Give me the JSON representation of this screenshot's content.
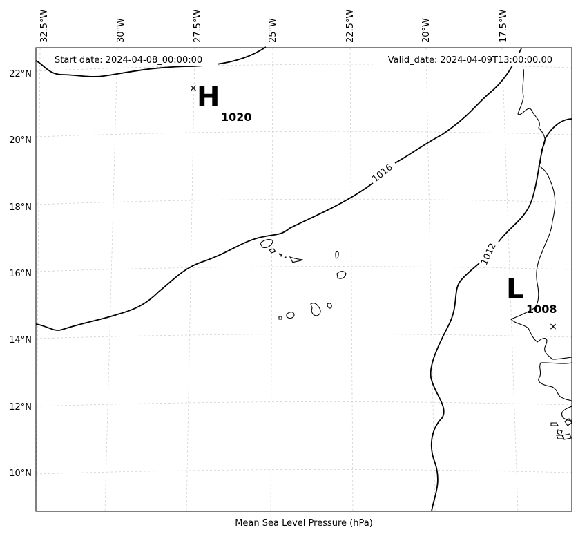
{
  "header": {
    "start_date": "Start date: 2024-04-08_00:00:00",
    "valid_date": "Valid_date: 2024-04-09T13:00:00.00"
  },
  "footer": {
    "xlabel": "Mean Sea Level Pressure (hPa)"
  },
  "axes": {
    "lon_ticks": [
      "32.5°W",
      "30°W",
      "27.5°W",
      "25°W",
      "22.5°W",
      "20°W",
      "17.5°W"
    ],
    "lat_ticks": [
      "22°N",
      "20°N",
      "18°N",
      "16°N",
      "14°N",
      "12°N",
      "10°N"
    ]
  },
  "pressure_centers": {
    "high": {
      "symbol": "H",
      "value": "1020"
    },
    "low": {
      "symbol": "L",
      "value": "1008"
    }
  },
  "isobars": {
    "labels": [
      "1016",
      "1012"
    ]
  },
  "style": {
    "line_color": "#000000",
    "grid_color": "#cccccc",
    "background": "#ffffff"
  }
}
